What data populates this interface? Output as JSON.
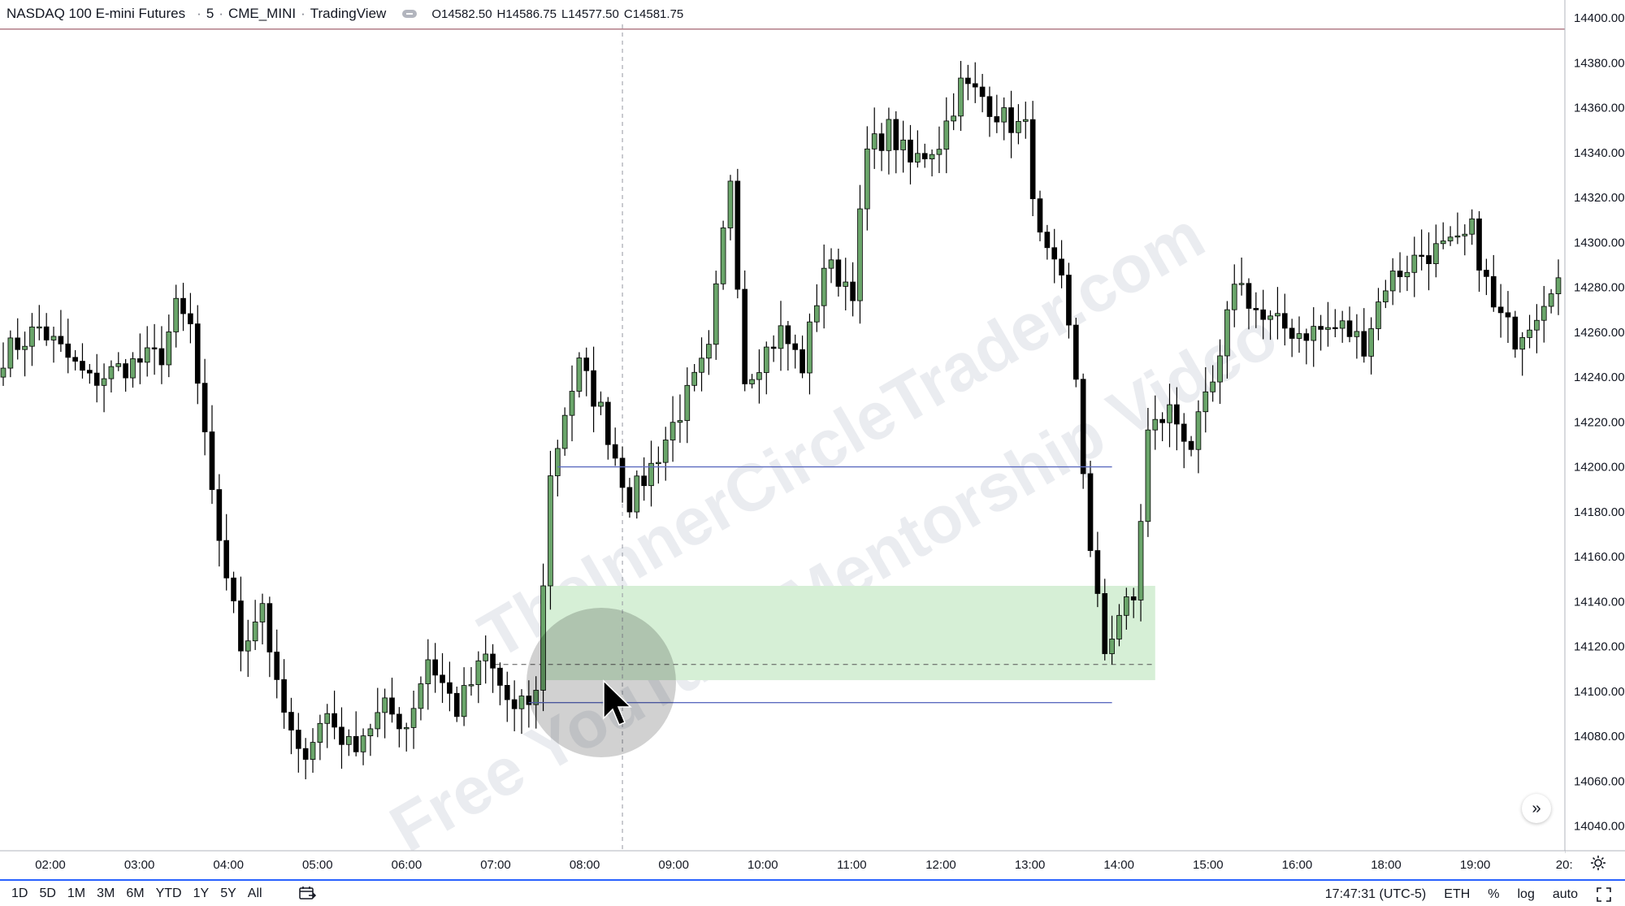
{
  "header": {
    "symbol": "NASDAQ 100 E-mini Futures",
    "interval": "5",
    "exchange": "CME_MINI",
    "source": "TradingView",
    "open": "O14582.50",
    "high": "H14586.75",
    "low": "L14577.50",
    "close": "C14581.75"
  },
  "colors": {
    "up_candle": "#6aa56a",
    "down_candle": "#000000",
    "zone": "#d6efd6",
    "level_line": "#5c6bc0",
    "top_line": "#8b3a4a",
    "watermark": "#d9dde3"
  },
  "watermark_text": {
    "line1": "TheInnerCircleTrader.com",
    "line2": "Free YouTube Mentorship Video"
  },
  "chart_data": {
    "type": "candlestick",
    "y_axis": {
      "ticks": [
        "14400.00",
        "14380.00",
        "14360.00",
        "14340.00",
        "14320.00",
        "14300.00",
        "14280.00",
        "14260.00",
        "14240.00",
        "14220.00",
        "14200.00",
        "14180.00",
        "14160.00",
        "14140.00",
        "14120.00",
        "14100.00",
        "14080.00",
        "14060.00",
        "14040.00"
      ],
      "range": [
        14029,
        14408
      ]
    },
    "x_axis": {
      "ticks": [
        "02:00",
        "03:00",
        "04:00",
        "05:00",
        "06:00",
        "07:00",
        "08:00",
        "09:00",
        "10:00",
        "11:00",
        "12:00",
        "13:00",
        "14:00",
        "15:00",
        "16:00",
        "18:00",
        "19:00",
        "20:"
      ]
    },
    "anchors": [
      {
        "t": 0,
        "c": 14250
      },
      {
        "t": 5,
        "c": 14262
      },
      {
        "t": 12,
        "c": 14238
      },
      {
        "t": 17,
        "c": 14245
      },
      {
        "t": 22,
        "c": 14250
      },
      {
        "t": 24,
        "c": 14270
      },
      {
        "t": 26,
        "c": 14262
      },
      {
        "t": 29,
        "c": 14185
      },
      {
        "t": 33,
        "c": 14120
      },
      {
        "t": 36,
        "c": 14140
      },
      {
        "t": 38,
        "c": 14100
      },
      {
        "t": 41,
        "c": 14070
      },
      {
        "t": 45,
        "c": 14090
      },
      {
        "t": 48,
        "c": 14075
      },
      {
        "t": 53,
        "c": 14092
      },
      {
        "t": 56,
        "c": 14085
      },
      {
        "t": 59,
        "c": 14115
      },
      {
        "t": 63,
        "c": 14092
      },
      {
        "t": 67,
        "c": 14115
      },
      {
        "t": 71,
        "c": 14090
      },
      {
        "t": 74,
        "c": 14098
      },
      {
        "t": 75,
        "c": 14150
      },
      {
        "t": 76,
        "c": 14195
      },
      {
        "t": 78,
        "c": 14225
      },
      {
        "t": 80,
        "c": 14245
      },
      {
        "t": 83,
        "c": 14225
      },
      {
        "t": 87,
        "c": 14185
      },
      {
        "t": 90,
        "c": 14200
      },
      {
        "t": 94,
        "c": 14225
      },
      {
        "t": 98,
        "c": 14250
      },
      {
        "t": 101,
        "c": 14330
      },
      {
        "t": 103,
        "c": 14240
      },
      {
        "t": 108,
        "c": 14260
      },
      {
        "t": 111,
        "c": 14245
      },
      {
        "t": 114,
        "c": 14290
      },
      {
        "t": 118,
        "c": 14280
      },
      {
        "t": 120,
        "c": 14340
      },
      {
        "t": 123,
        "c": 14350
      },
      {
        "t": 126,
        "c": 14335
      },
      {
        "t": 130,
        "c": 14345
      },
      {
        "t": 133,
        "c": 14370
      },
      {
        "t": 136,
        "c": 14365
      },
      {
        "t": 139,
        "c": 14355
      },
      {
        "t": 142,
        "c": 14350
      },
      {
        "t": 144,
        "c": 14300
      },
      {
        "t": 147,
        "c": 14280
      },
      {
        "t": 149,
        "c": 14240
      },
      {
        "t": 151,
        "c": 14160
      },
      {
        "t": 153,
        "c": 14118
      },
      {
        "t": 155,
        "c": 14135
      },
      {
        "t": 157,
        "c": 14140
      },
      {
        "t": 159,
        "c": 14215
      },
      {
        "t": 162,
        "c": 14225
      },
      {
        "t": 165,
        "c": 14210
      },
      {
        "t": 169,
        "c": 14245
      },
      {
        "t": 171,
        "c": 14285
      },
      {
        "t": 175,
        "c": 14265
      },
      {
        "t": 180,
        "c": 14260
      },
      {
        "t": 186,
        "c": 14262
      },
      {
        "t": 189,
        "c": 14255
      },
      {
        "t": 192,
        "c": 14282
      },
      {
        "t": 197,
        "c": 14295
      },
      {
        "t": 202,
        "c": 14298
      },
      {
        "t": 204,
        "c": 14305
      },
      {
        "t": 207,
        "c": 14270
      },
      {
        "t": 210,
        "c": 14258
      },
      {
        "t": 213,
        "c": 14270
      },
      {
        "t": 215,
        "c": 14283
      }
    ],
    "zones": [
      {
        "label": "bullish-fvg-zone",
        "from_t": 75,
        "to_t": 160,
        "price_top": 14147,
        "price_bottom": 14105,
        "midline": 14112
      }
    ],
    "levels": [
      {
        "label": "upper-level",
        "price": 14200,
        "from_t": 77,
        "to_t": 154
      },
      {
        "label": "lower-level",
        "price": 14095,
        "from_t": 73,
        "to_t": 154
      },
      {
        "label": "top-line",
        "price": 14395,
        "from_t": 0,
        "to_t": 216
      }
    ],
    "crosshair_t": 86
  },
  "bottombar": {
    "ranges": [
      "1D",
      "5D",
      "1M",
      "3M",
      "6M",
      "YTD",
      "1Y",
      "5Y",
      "All"
    ],
    "clock": "17:47:31 (UTC-5)",
    "session": "ETH",
    "percent": "%",
    "log": "log",
    "auto": "auto"
  },
  "icons": {
    "calendar": "calendar-goto-icon",
    "expand": "chevron-double-right-icon",
    "settings": "gear-icon",
    "fullscreen": "fullscreen-icon"
  }
}
